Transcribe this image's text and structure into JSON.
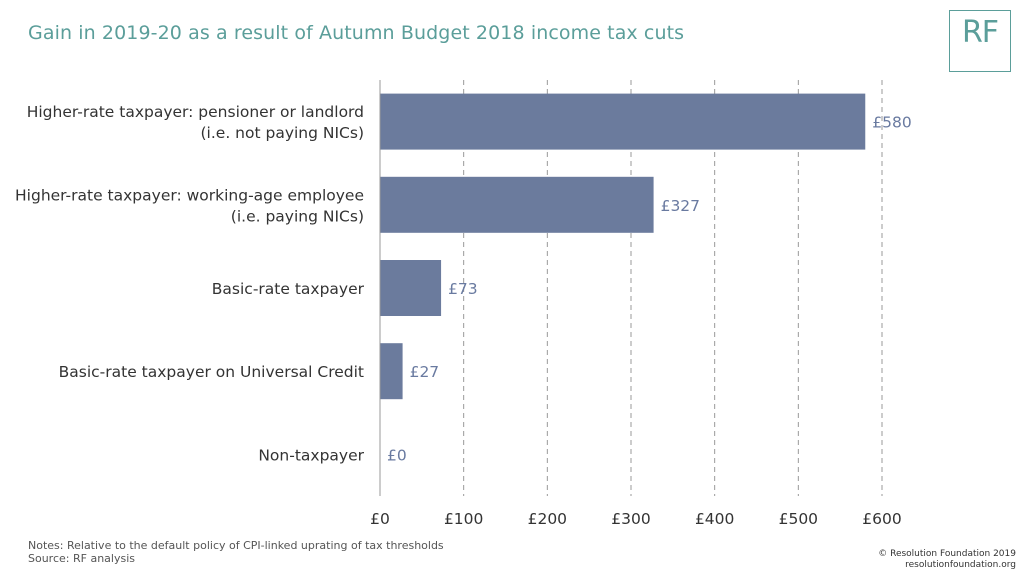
{
  "title": "Gain in 2019-20 as a result of Autumn Budget 2018 income tax cuts",
  "logo": "RF",
  "notes": {
    "line1": "Notes: Relative to the default policy of CPI-linked uprating of tax thresholds",
    "line2": "Source: RF analysis"
  },
  "credits": {
    "copyright": "© Resolution Foundation 2019",
    "site": "resolutionfoundation.org"
  },
  "colors": {
    "bar": "#6b7b9d",
    "title": "#5b9e9a",
    "value_label": "#697aa0",
    "grid": "#999999"
  },
  "chart_data": {
    "type": "bar",
    "orientation": "horizontal",
    "categories": [
      [
        "Higher-rate taxpayer: pensioner or landlord",
        "(i.e. not paying NICs)"
      ],
      [
        "Higher-rate taxpayer: working-age employee",
        "(i.e. paying NICs)"
      ],
      [
        "Basic-rate taxpayer"
      ],
      [
        "Basic-rate taxpayer on Universal Credit"
      ],
      [
        "Non-taxpayer"
      ]
    ],
    "values": [
      580,
      327,
      73,
      27,
      0
    ],
    "value_labels": [
      "£580",
      "£327",
      "£73",
      "£27",
      "£0"
    ],
    "xlim": [
      0,
      600
    ],
    "xticks": [
      0,
      100,
      200,
      300,
      400,
      500,
      600
    ],
    "xtick_labels": [
      "£0",
      "£100",
      "£200",
      "£300",
      "£400",
      "£500",
      "£600"
    ],
    "grid": "vertical dashed"
  }
}
